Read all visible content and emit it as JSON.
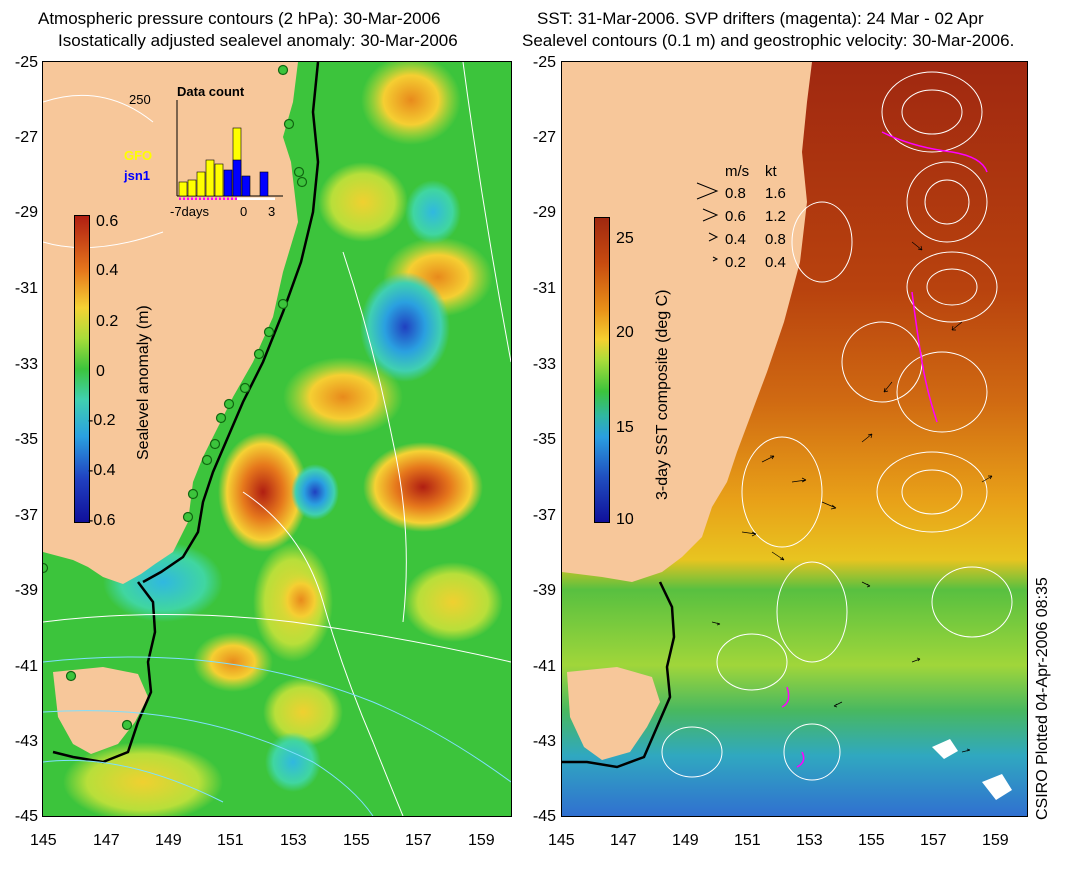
{
  "left_panel": {
    "title_line1": "Atmospheric pressure contours (2 hPa): 30-Mar-2006",
    "title_line2": "Isostatically adjusted sealevel anomaly: 30-Mar-2006",
    "colorbar_label": "Sealevel anomaly (m)",
    "colorbar_ticks": [
      "0.6",
      "0.4",
      "0.2",
      "0",
      "-0.2",
      "-0.4",
      "-0.6"
    ],
    "inset": {
      "title": "Data count",
      "ymax": "250",
      "legend": [
        "GFO",
        "jsn1"
      ],
      "x_ticks": [
        "-7days",
        "0",
        "3"
      ],
      "legend_colors": [
        "#ffff00",
        "#0000ff"
      ]
    }
  },
  "right_panel": {
    "title_line1": "SST: 31-Mar-2006. SVP drifters (magenta): 24 Mar - 02 Apr",
    "title_line2": "Sealevel contours (0.1 m) and geostrophic velocity: 30-Mar-2006.",
    "colorbar_label": "3-day SST composite (deg C)",
    "colorbar_ticks": [
      "25",
      "20",
      "15",
      "10"
    ],
    "speed_legend": {
      "header_ms": "m/s",
      "header_kt": "kt",
      "rows": [
        {
          "ms": "0.8",
          "kt": "1.6"
        },
        {
          "ms": "0.6",
          "kt": "1.2"
        },
        {
          "ms": "0.4",
          "kt": "0.8"
        },
        {
          "ms": "0.2",
          "kt": "0.4"
        }
      ]
    }
  },
  "axes": {
    "y_ticks": [
      "-25",
      "-27",
      "-29",
      "-31",
      "-33",
      "-35",
      "-37",
      "-39",
      "-41",
      "-43",
      "-45"
    ],
    "x_ticks": [
      "145",
      "147",
      "149",
      "151",
      "153",
      "155",
      "157",
      "159"
    ]
  },
  "footer": {
    "credit": "CSIRO Plotted 04-Apr-2006 08:35"
  },
  "colors": {
    "land": "#f7c79a",
    "sealevel_zero": "#3cc43c",
    "sst_warm": "#b83a0e",
    "sst_mid": "#e89a14",
    "sst_cool": "#3ab44a",
    "sst_cold": "#2f7fd0"
  }
}
